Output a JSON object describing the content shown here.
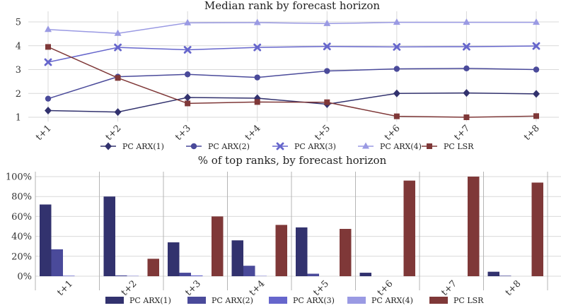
{
  "chart_data": [
    {
      "type": "line",
      "title": "Median rank by forecast horizon",
      "categories": [
        "t+1",
        "t+2",
        "t+3",
        "t+4",
        "t+5",
        "t+6",
        "t+7",
        "t+8"
      ],
      "ylim": [
        1,
        5
      ],
      "yticks": [
        "1",
        "2",
        "3",
        "4",
        "5"
      ],
      "grid": true,
      "legend_position": "bottom",
      "series": [
        {
          "name": "PC ARX(1)",
          "color": "#32326e",
          "marker": "diamond",
          "values": [
            1.28,
            1.22,
            1.83,
            1.8,
            1.55,
            2.0,
            2.02,
            1.98
          ]
        },
        {
          "name": "PC ARX(2)",
          "color": "#4a4a9a",
          "marker": "circle",
          "values": [
            1.78,
            2.7,
            2.8,
            2.67,
            2.94,
            3.03,
            3.05,
            3.0
          ]
        },
        {
          "name": "PC ARX(3)",
          "color": "#6666cc",
          "marker": "x",
          "values": [
            3.31,
            3.93,
            3.83,
            3.93,
            3.97,
            3.95,
            3.96,
            3.99
          ]
        },
        {
          "name": "PC ARX(4)",
          "color": "#9a9ae3",
          "marker": "triangle",
          "values": [
            4.68,
            4.52,
            4.96,
            4.97,
            4.93,
            4.98,
            4.98,
            4.98
          ]
        },
        {
          "name": "PC LSR",
          "color": "#7f3838",
          "marker": "square",
          "values": [
            3.95,
            2.65,
            1.58,
            1.64,
            1.63,
            1.04,
            1.0,
            1.05
          ]
        }
      ]
    },
    {
      "type": "bar",
      "title": "% of top ranks, by forecast horizon",
      "categories": [
        "t+1",
        "t+2",
        "t+3",
        "t+4",
        "t+5",
        "t+6",
        "t+7",
        "t+8"
      ],
      "ylim": [
        0,
        100
      ],
      "yticks": [
        "0%",
        "20%",
        "40%",
        "60%",
        "80%",
        "100%"
      ],
      "grid": true,
      "legend_position": "bottom",
      "series": [
        {
          "name": "PC ARX(1)",
          "color": "#32326e",
          "values": [
            72,
            80,
            34,
            36,
            49,
            3.5,
            0,
            4.5
          ]
        },
        {
          "name": "PC ARX(2)",
          "color": "#4a4a9a",
          "values": [
            27,
            0.8,
            3.5,
            10.5,
            2.5,
            0,
            0,
            0.5
          ]
        },
        {
          "name": "PC ARX(3)",
          "color": "#6666cc",
          "values": [
            0.5,
            0.3,
            0.8,
            0.3,
            0,
            0,
            0,
            0
          ]
        },
        {
          "name": "PC ARX(4)",
          "color": "#9a9ae3",
          "values": [
            0,
            0,
            0,
            0,
            0,
            0,
            0,
            0
          ]
        },
        {
          "name": "PC LSR",
          "color": "#7f3838",
          "values": [
            0,
            17.5,
            60,
            51.5,
            47.5,
            96,
            100,
            94
          ]
        }
      ]
    }
  ]
}
